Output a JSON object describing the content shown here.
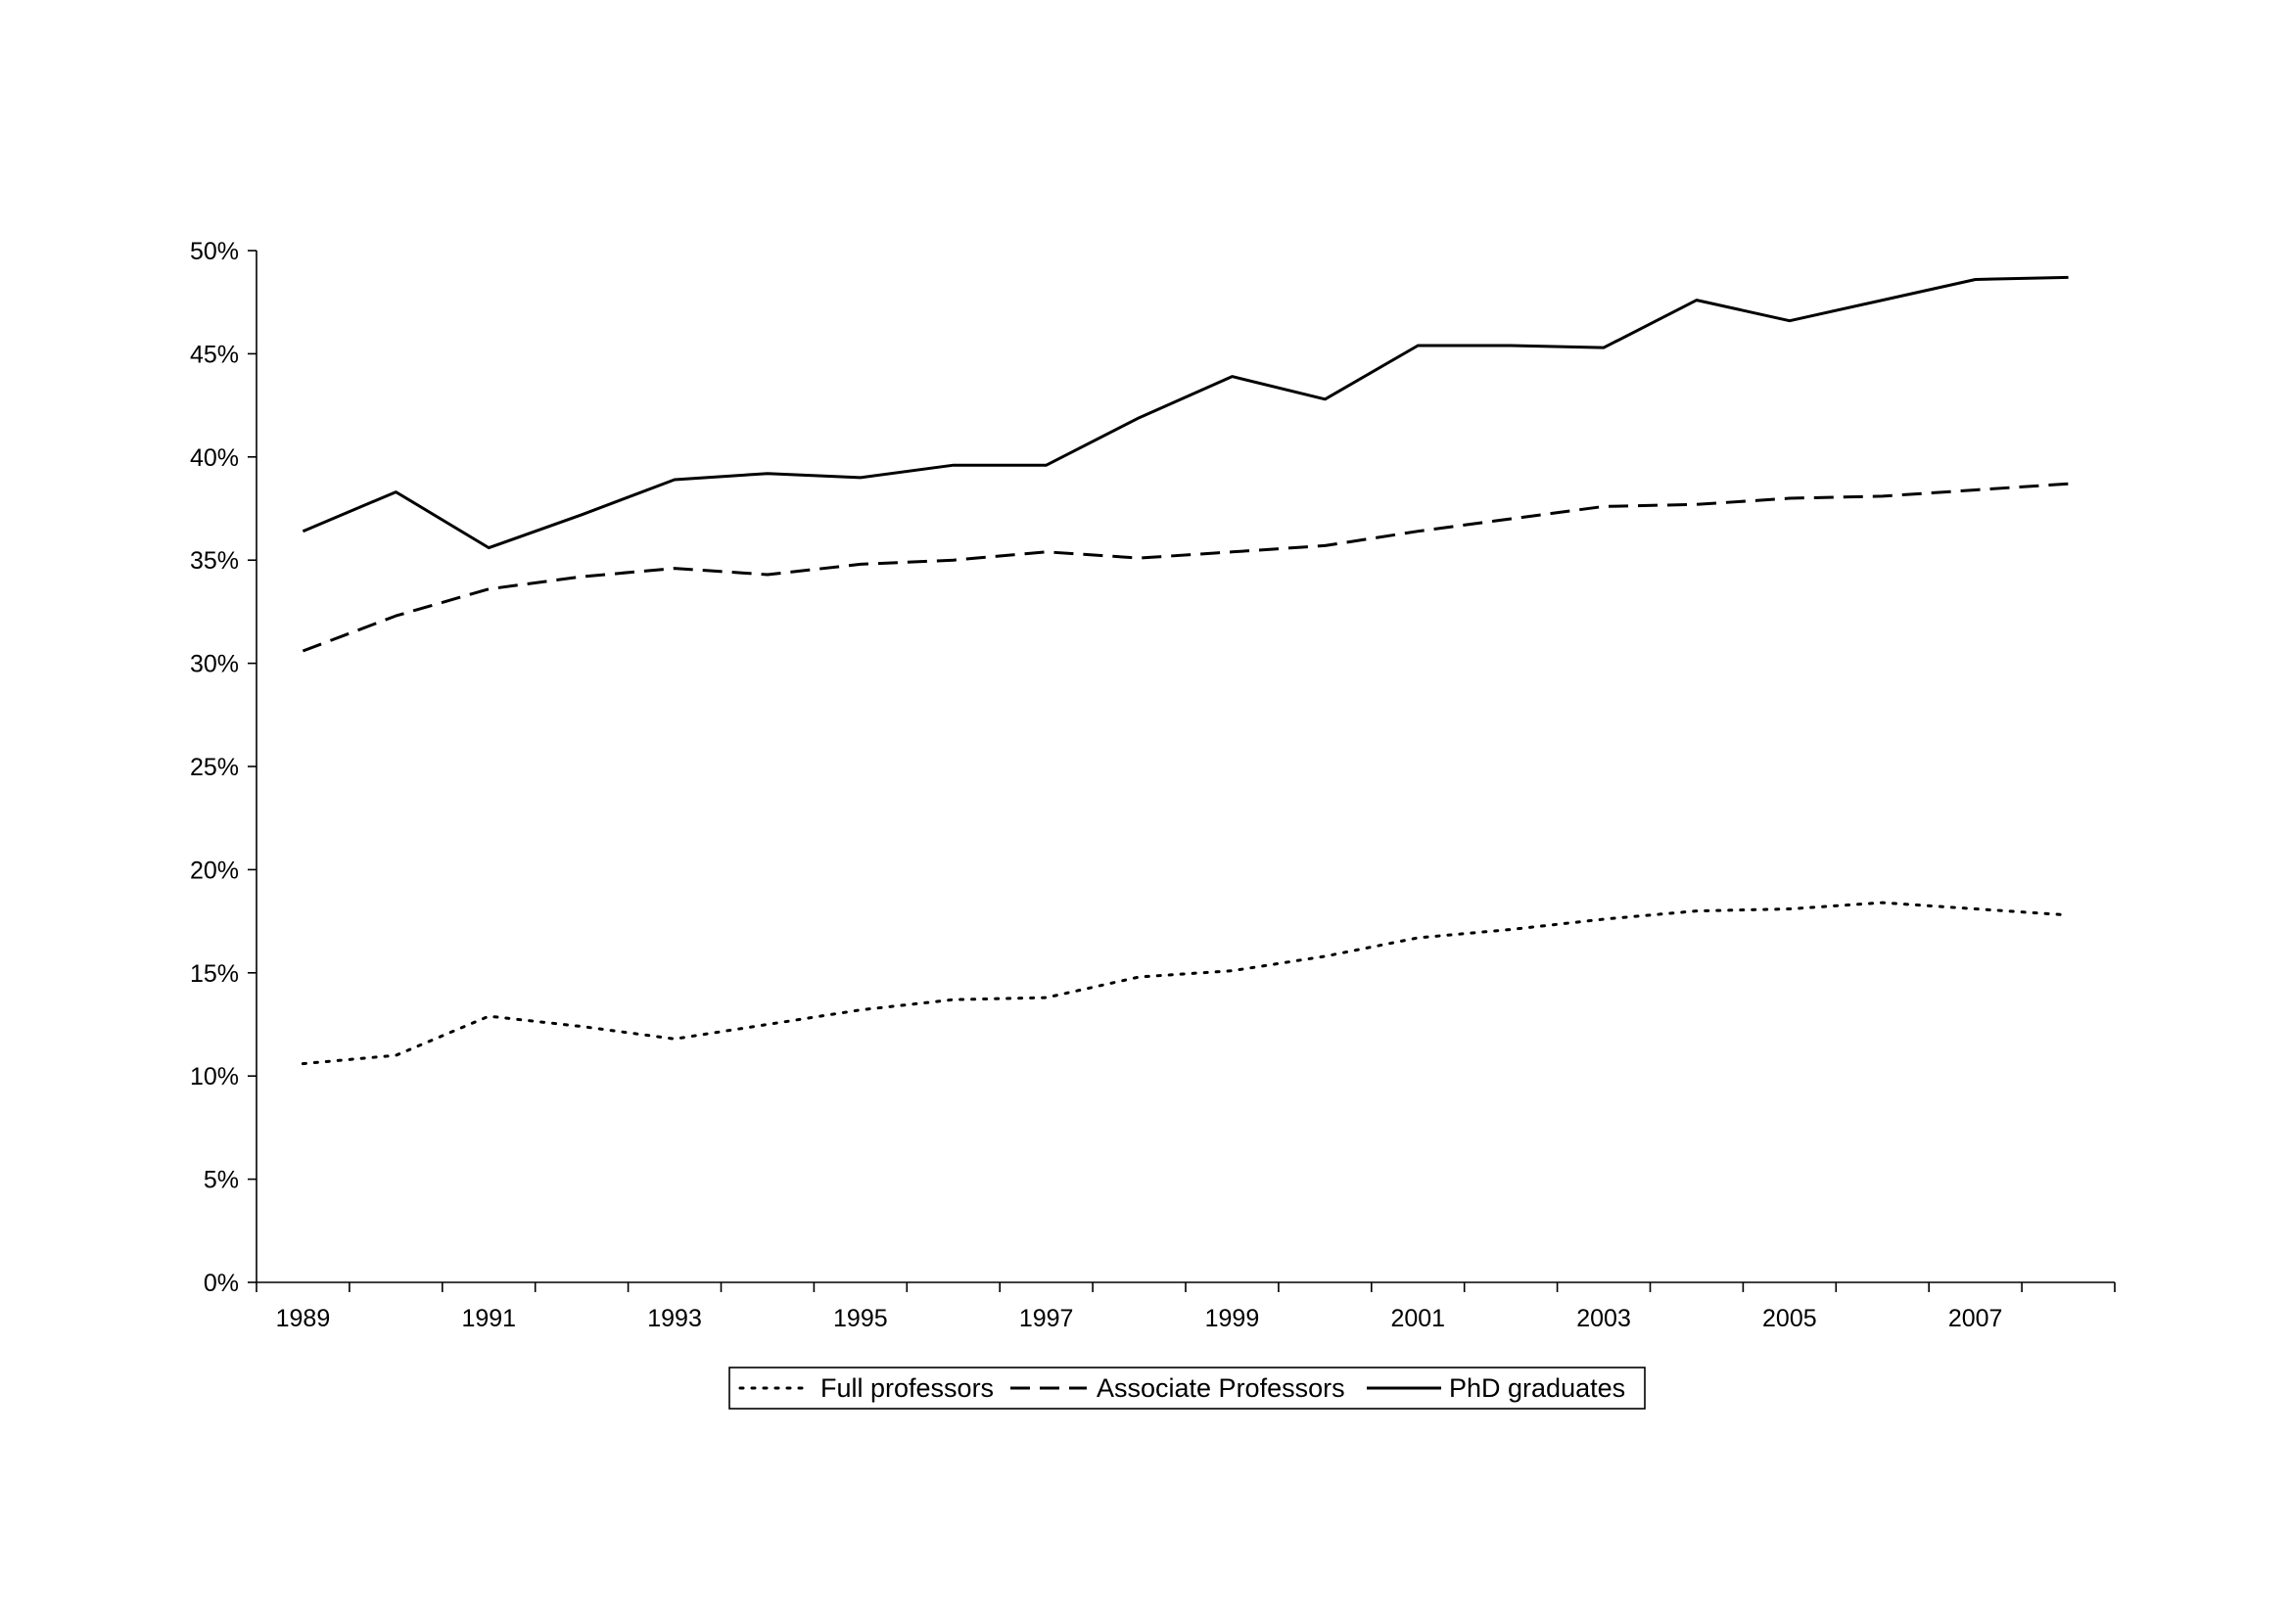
{
  "chart_data": {
    "type": "line",
    "title": "",
    "xlabel": "",
    "ylabel": "",
    "x": [
      1989,
      1990,
      1991,
      1992,
      1993,
      1994,
      1995,
      1996,
      1997,
      1998,
      1999,
      2000,
      2001,
      2002,
      2003,
      2004,
      2005,
      2006,
      2007,
      2008
    ],
    "x_tick_labels": [
      "1989",
      "1991",
      "1993",
      "1995",
      "1997",
      "1999",
      "2001",
      "2003",
      "2005",
      "2007"
    ],
    "y_tick_labels": [
      "0%",
      "5%",
      "10%",
      "15%",
      "20%",
      "25%",
      "30%",
      "35%",
      "40%",
      "45%",
      "50%"
    ],
    "ylim": [
      0,
      50
    ],
    "y_unit": "%",
    "grid": false,
    "legend_position": "bottom",
    "series": [
      {
        "name": "Full professors",
        "style": "dotted",
        "values": [
          10.6,
          11.0,
          12.9,
          12.4,
          11.8,
          12.5,
          13.2,
          13.7,
          13.8,
          14.8,
          15.1,
          15.8,
          16.7,
          17.1,
          17.6,
          18.0,
          18.1,
          18.4,
          18.1,
          17.8
        ]
      },
      {
        "name": "Associate Professors",
        "style": "dashed",
        "values": [
          30.6,
          32.3,
          33.6,
          34.2,
          34.6,
          34.3,
          34.8,
          35.0,
          35.4,
          35.1,
          35.4,
          35.7,
          36.4,
          37.0,
          37.6,
          37.7,
          38.0,
          38.1,
          38.4,
          38.7
        ]
      },
      {
        "name": "PhD graduates",
        "style": "solid",
        "values": [
          36.4,
          38.3,
          35.6,
          37.2,
          38.9,
          39.2,
          39.0,
          39.6,
          39.6,
          41.9,
          43.9,
          42.8,
          45.4,
          45.4,
          45.3,
          47.6,
          46.6,
          47.6,
          48.6,
          48.7
        ]
      }
    ],
    "colors": {
      "line": "#000000",
      "axis": "#000000",
      "background": "#ffffff"
    }
  }
}
